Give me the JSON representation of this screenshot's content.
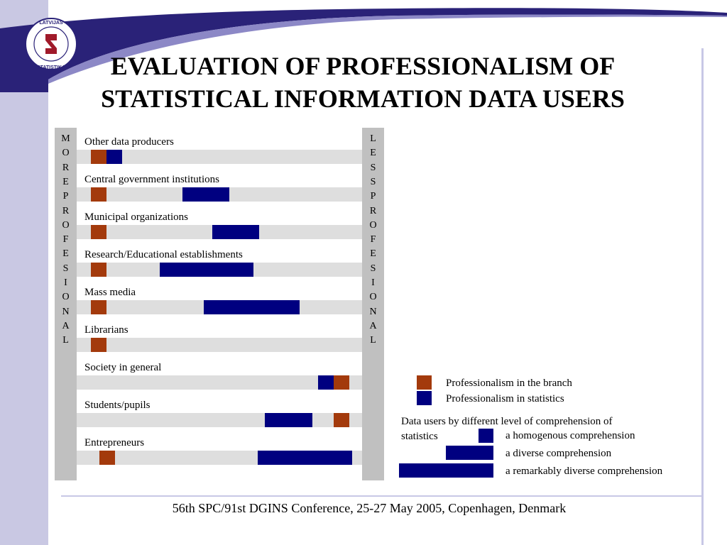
{
  "title_line1": "EVALUATION OF PROFESSIONALISM OF",
  "title_line2": "STATISTICAL INFORMATION DATA USERS",
  "footer": "56th SPC/91st DGINS Conference,  25-27 May 2005, Copenhagen, Denmark",
  "left_axis_label": "MORE PROFESIONAL",
  "right_axis_label": "LESS PROFESIONAL",
  "colors": {
    "branch": "#a33a0c",
    "statistics": "#000080",
    "track": "#dedede",
    "axis_band": "#c0c0c0"
  },
  "legend": {
    "branch_label": "Professionalism in the branch",
    "statistics_label": "Professionalism in statistics",
    "width_title": "Data users by different level of comprehension of statistics",
    "homogenous": "a homogenous comprehension",
    "diverse": "a diverse comprehension",
    "remarkably_diverse": "a remarkably diverse comprehension"
  },
  "chart_data": {
    "type": "bar",
    "title": "EVALUATION OF PROFESSIONALISM OF STATISTICAL INFORMATION DATA USERS",
    "x_scale": "professionalism, from more professional (left, 0) to less professional (right, 100)",
    "xlim": [
      0,
      100
    ],
    "categories": [
      "Other data producers",
      "Central government institutions",
      "Municipal organizations",
      "Research/Educational establishments",
      "Mass media",
      "Librarians",
      "Society in general",
      "Students/pupils",
      "Entrepreneurs"
    ],
    "series": [
      {
        "name": "Professionalism in the branch",
        "ranges": [
          [
            5,
            10.5
          ],
          [
            5,
            10.5
          ],
          [
            5,
            10.5
          ],
          [
            5,
            10.5
          ],
          [
            5,
            10.5
          ],
          [
            5,
            10.5
          ],
          [
            90,
            95.5
          ],
          [
            90,
            95.5
          ],
          [
            8,
            13.5
          ]
        ]
      },
      {
        "name": "Professionalism in statistics",
        "ranges": [
          [
            10.5,
            16
          ],
          [
            37,
            53.5
          ],
          [
            47.5,
            64
          ],
          [
            29,
            62
          ],
          [
            44.5,
            78
          ],
          null,
          [
            84.5,
            90
          ],
          [
            66,
            82.5
          ],
          [
            63.5,
            96.5
          ]
        ]
      }
    ]
  }
}
